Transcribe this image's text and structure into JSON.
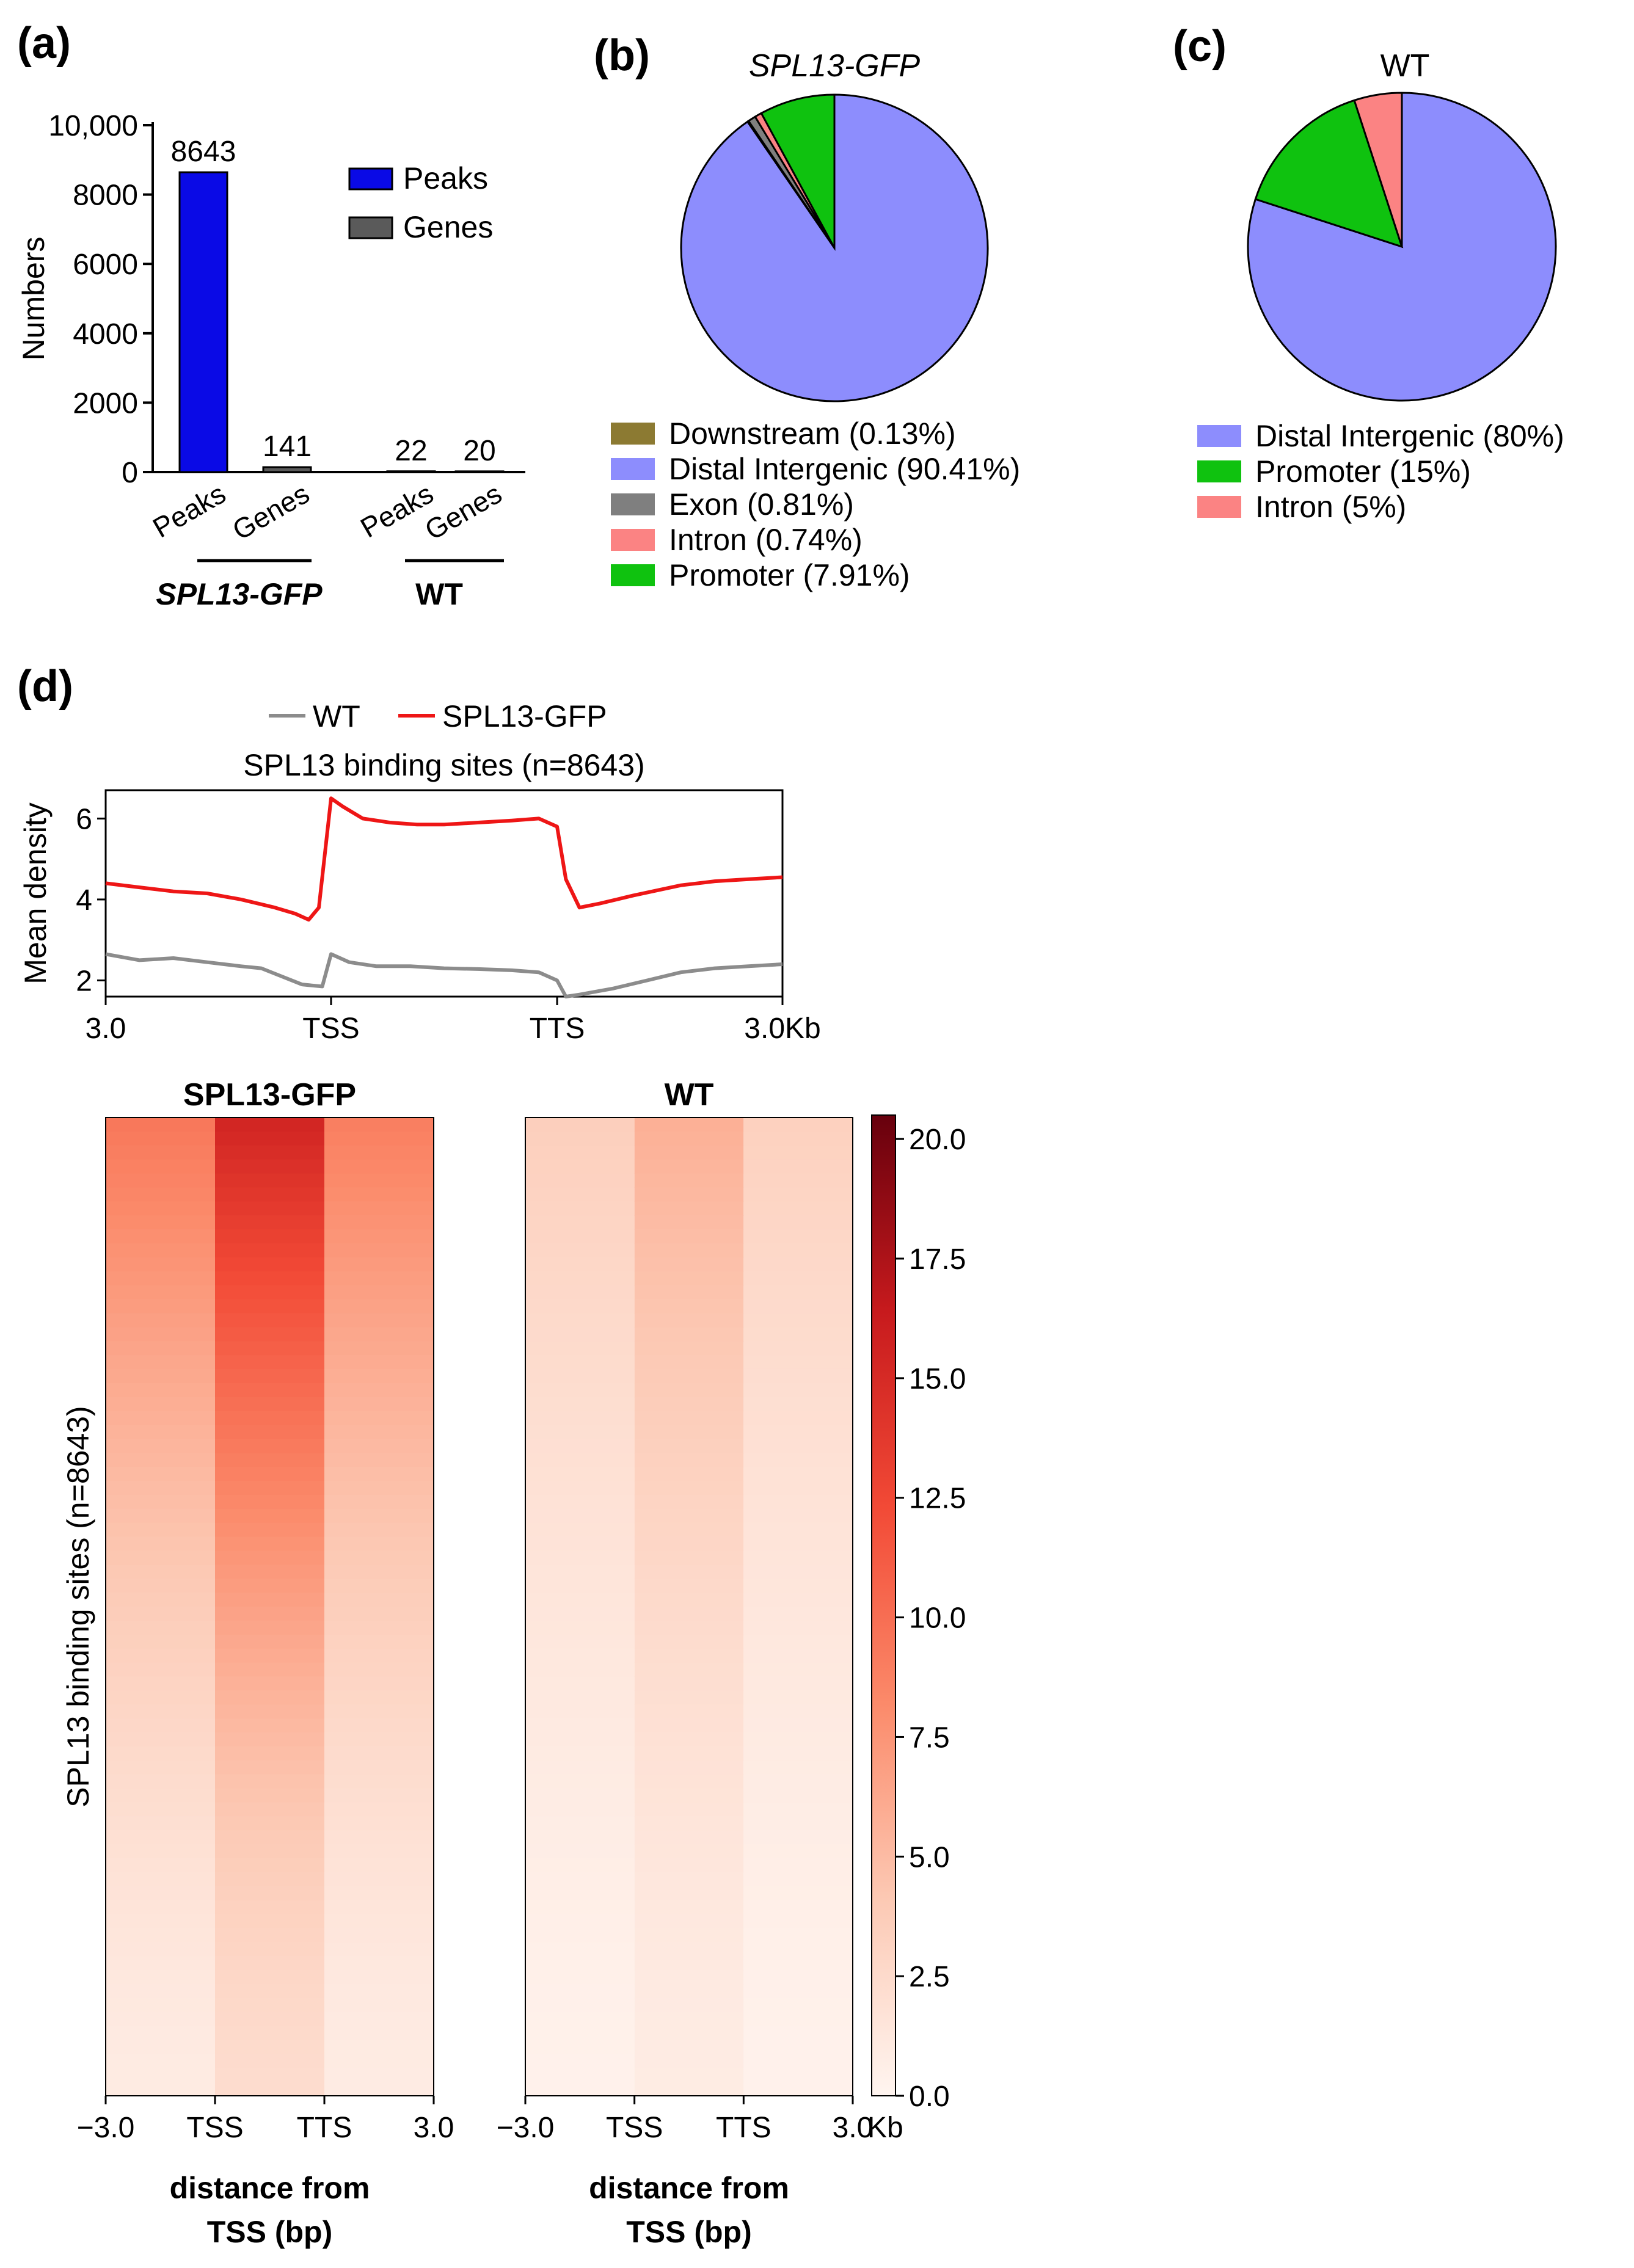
{
  "colors": {
    "peaks": "#0a0ae6",
    "genes": "#5a5a5a",
    "downstream": "#8c7a32",
    "distal_intergenic": "#8d8dfd",
    "exon": "#7f7f7f",
    "intron": "#fb8383",
    "promoter": "#0fc20f",
    "wt_line": "#8c8c8c",
    "spl13_line": "#ee1616"
  },
  "panels": {
    "a": {
      "letter": "(a)"
    },
    "b": {
      "letter": "(b)"
    },
    "c": {
      "letter": "(c)"
    },
    "d": {
      "letter": "(d)"
    }
  },
  "chart_data": [
    {
      "id": "a",
      "type": "bar",
      "ylabel": "Numbers",
      "ylim": [
        0,
        10000
      ],
      "yticks": [
        "0",
        "2000",
        "4000",
        "6000",
        "8000",
        "10,000"
      ],
      "ytick_values": [
        0,
        2000,
        4000,
        6000,
        8000,
        10000
      ],
      "bars": [
        {
          "group": "SPL13-GFP",
          "category": "Peaks",
          "series": "Peaks",
          "value": 8643,
          "label": "8643"
        },
        {
          "group": "SPL13-GFP",
          "category": "Genes",
          "series": "Genes",
          "value": 141,
          "label": "141"
        },
        {
          "group": "WT",
          "category": "Peaks",
          "series": "Peaks",
          "value": 22,
          "label": "22"
        },
        {
          "group": "WT",
          "category": "Genes",
          "series": "Genes",
          "value": 20,
          "label": "20"
        }
      ],
      "groups": [
        "SPL13-GFP",
        "WT"
      ],
      "legend": [
        "Peaks",
        "Genes"
      ]
    },
    {
      "id": "b",
      "type": "pie",
      "title": "SPL13-GFP",
      "slices": [
        {
          "name": "Downstream",
          "value": 0.13,
          "label": "Downstream (0.13%)",
          "color_key": "downstream"
        },
        {
          "name": "Distal Intergenic",
          "value": 90.41,
          "label": "Distal Intergenic (90.41%)",
          "color_key": "distal_intergenic"
        },
        {
          "name": "Exon",
          "value": 0.81,
          "label": "Exon (0.81%)",
          "color_key": "exon"
        },
        {
          "name": "Intron",
          "value": 0.74,
          "label": "Intron (0.74%)",
          "color_key": "intron"
        },
        {
          "name": "Promoter",
          "value": 7.91,
          "label": "Promoter (7.91%)",
          "color_key": "promoter"
        }
      ]
    },
    {
      "id": "c",
      "type": "pie",
      "title": "WT",
      "slices": [
        {
          "name": "Distal Intergenic",
          "value": 80,
          "label": "Distal Intergenic (80%)",
          "color_key": "distal_intergenic"
        },
        {
          "name": "Promoter",
          "value": 15,
          "label": "Promoter (15%)",
          "color_key": "promoter"
        },
        {
          "name": "Intron",
          "value": 5,
          "label": "Intron (5%)",
          "color_key": "intron"
        }
      ]
    },
    {
      "id": "d-profile",
      "type": "line",
      "title": "SPL13 binding sites (n=8643)",
      "ylabel": "Mean density",
      "ylim": [
        1.6,
        6.7
      ],
      "yticks": [
        2,
        4,
        6
      ],
      "xlim": [
        0,
        100
      ],
      "xticks": [
        {
          "pos": 0,
          "label": "3.0"
        },
        {
          "pos": 33.3,
          "label": "TSS"
        },
        {
          "pos": 66.7,
          "label": "TTS"
        },
        {
          "pos": 100,
          "label": "3.0Kb"
        }
      ],
      "series": [
        {
          "name": "WT",
          "color_key": "wt_line",
          "points": [
            [
              0,
              2.65
            ],
            [
              5,
              2.5
            ],
            [
              10,
              2.55
            ],
            [
              15,
              2.45
            ],
            [
              20,
              2.35
            ],
            [
              23,
              2.3
            ],
            [
              26,
              2.1
            ],
            [
              29,
              1.9
            ],
            [
              32,
              1.85
            ],
            [
              33.3,
              2.65
            ],
            [
              36,
              2.45
            ],
            [
              40,
              2.35
            ],
            [
              45,
              2.35
            ],
            [
              50,
              2.3
            ],
            [
              55,
              2.28
            ],
            [
              60,
              2.25
            ],
            [
              64,
              2.2
            ],
            [
              66.7,
              2.0
            ],
            [
              68,
              1.6
            ],
            [
              70,
              1.65
            ],
            [
              75,
              1.8
            ],
            [
              80,
              2.0
            ],
            [
              85,
              2.2
            ],
            [
              90,
              2.3
            ],
            [
              95,
              2.35
            ],
            [
              100,
              2.4
            ]
          ]
        },
        {
          "name": "SPL13-GFP",
          "color_key": "spl13_line",
          "points": [
            [
              0,
              4.4
            ],
            [
              5,
              4.3
            ],
            [
              10,
              4.2
            ],
            [
              15,
              4.15
            ],
            [
              20,
              4.0
            ],
            [
              25,
              3.8
            ],
            [
              28,
              3.65
            ],
            [
              30,
              3.5
            ],
            [
              31.5,
              3.8
            ],
            [
              33.3,
              6.5
            ],
            [
              35,
              6.3
            ],
            [
              38,
              6.0
            ],
            [
              42,
              5.9
            ],
            [
              46,
              5.85
            ],
            [
              50,
              5.85
            ],
            [
              55,
              5.9
            ],
            [
              60,
              5.95
            ],
            [
              64,
              6.0
            ],
            [
              66.7,
              5.8
            ],
            [
              68,
              4.5
            ],
            [
              70,
              3.8
            ],
            [
              73,
              3.9
            ],
            [
              78,
              4.1
            ],
            [
              85,
              4.35
            ],
            [
              90,
              4.45
            ],
            [
              95,
              4.5
            ],
            [
              100,
              4.55
            ]
          ]
        }
      ]
    },
    {
      "id": "d-heatmaps",
      "type": "heatmap",
      "ylabel": "SPL13 binding sites (n=8643)",
      "panels": [
        {
          "name": "SPL13-GFP",
          "max_intensity": 0.75
        },
        {
          "name": "WT",
          "max_intensity": 0.28
        }
      ],
      "xticks": [
        "−3.0",
        "TSS",
        "TTS",
        "3.0"
      ],
      "xtick_values": [
        -3,
        -1,
        1,
        3
      ],
      "xunit": "Kb",
      "xlabel": [
        "distance from",
        "TSS (bp)"
      ],
      "colorbar": {
        "min": 0,
        "max": 20.5,
        "ticks": [
          "0.0",
          "2.5",
          "5.0",
          "7.5",
          "10.0",
          "12.5",
          "15.0",
          "17.5",
          "20.0"
        ],
        "tick_values": [
          0,
          2.5,
          5,
          7.5,
          10,
          12.5,
          15,
          17.5,
          20
        ]
      }
    }
  ]
}
